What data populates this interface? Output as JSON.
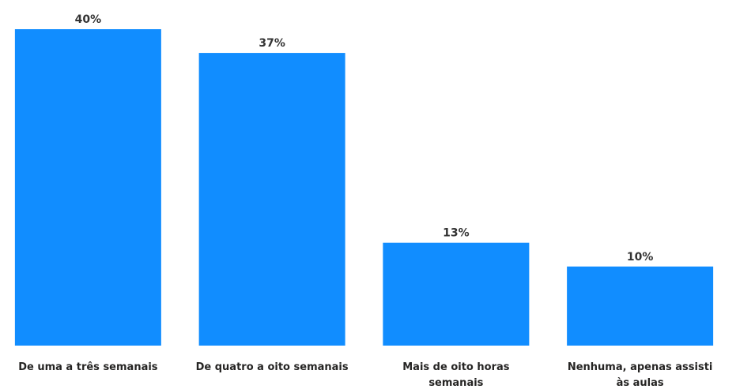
{
  "chart_data": {
    "type": "bar",
    "categories": [
      [
        "De uma a três semanais"
      ],
      [
        "De quatro a oito semanais"
      ],
      [
        "Mais de oito horas",
        "semanais"
      ],
      [
        "Nenhuma, apenas assisti",
        "às aulas"
      ]
    ],
    "values": [
      40,
      37,
      13,
      10
    ],
    "value_labels": [
      "40%",
      "37%",
      "13%",
      "10%"
    ],
    "unit": "%",
    "ylim": [
      0,
      40
    ],
    "grid": false,
    "bar_color": "#118dff"
  }
}
